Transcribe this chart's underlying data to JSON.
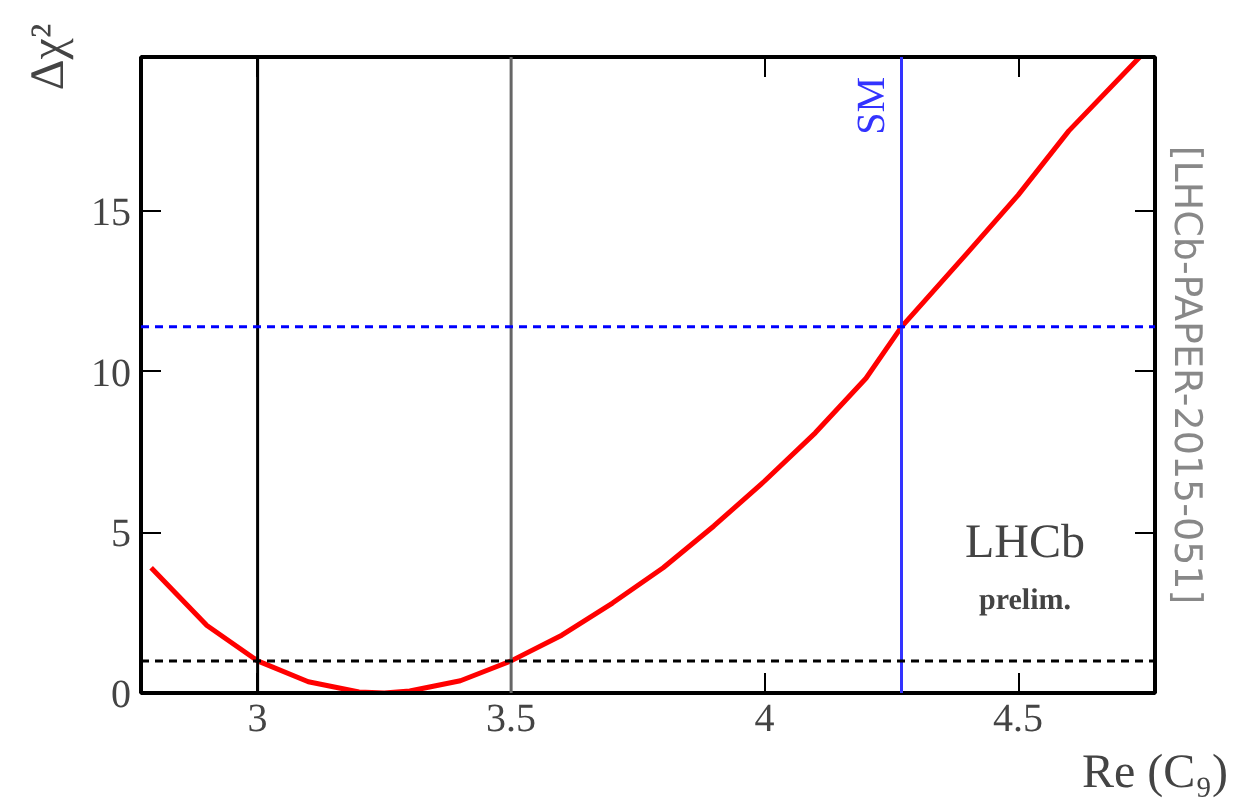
{
  "chart_data": {
    "type": "line",
    "xlabel": "Re (C₉)",
    "ylabel": "Δχ²",
    "x": [
      2.79,
      2.9,
      3.0,
      3.1,
      3.2,
      3.25,
      3.3,
      3.4,
      3.5,
      3.6,
      3.7,
      3.8,
      3.9,
      4.0,
      4.1,
      4.2,
      4.27,
      4.4,
      4.5,
      4.6,
      4.74
    ],
    "series": [
      {
        "color": "#ff0000",
        "values": [
          3.9,
          2.1,
          1.0,
          0.35,
          0.03,
          0.0,
          0.06,
          0.38,
          1.0,
          1.8,
          2.8,
          3.9,
          5.2,
          6.6,
          8.1,
          9.8,
          11.4,
          13.7,
          15.5,
          17.5,
          19.8
        ]
      }
    ],
    "xlim": [
      2.77,
      4.77
    ],
    "ylim": [
      0,
      19.8
    ],
    "xticks": [
      3,
      3.5,
      4,
      4.5
    ],
    "yticks": [
      0,
      5,
      10,
      15
    ],
    "ref_lines": [
      {
        "axis": "x",
        "value": 3.0,
        "label": null,
        "color": "#000000",
        "line_style": "solid"
      },
      {
        "axis": "x",
        "value": 3.5,
        "label": null,
        "color": "#666666",
        "line_style": "solid"
      },
      {
        "axis": "x",
        "value": 4.27,
        "label": "SM",
        "color": "#3333ff",
        "line_style": "solid"
      },
      {
        "axis": "y",
        "value": 11.4,
        "label": null,
        "color": "#0000ff",
        "line_style": "dashed"
      },
      {
        "axis": "y",
        "value": 1.0,
        "label": null,
        "color": "#000000",
        "line_style": "dashed"
      }
    ],
    "annotations": [
      "LHCb",
      "prelim.",
      "[LHCb-PAPER-2015-051]"
    ],
    "grid": false,
    "marker": "none",
    "line_style": "solid"
  }
}
